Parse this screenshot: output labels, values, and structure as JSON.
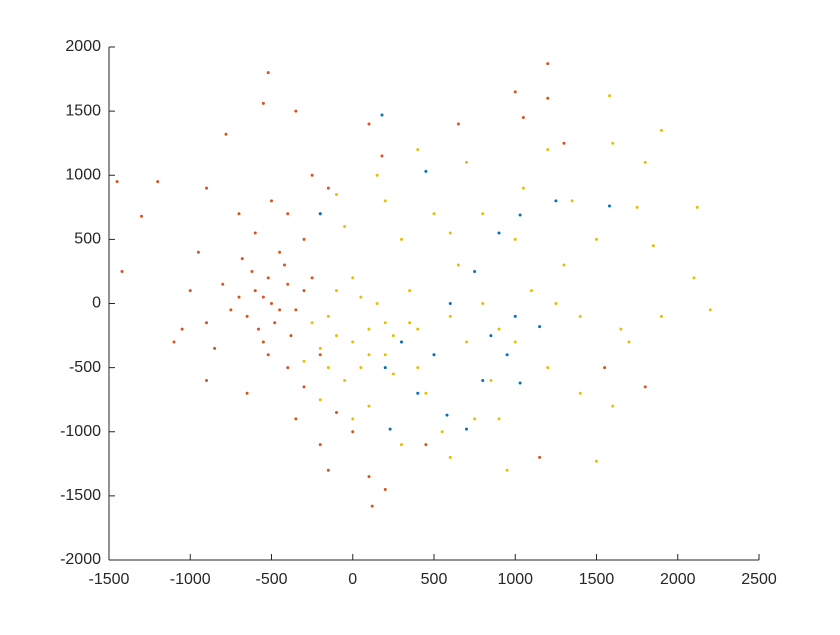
{
  "chart_data": {
    "type": "scatter",
    "xlim": [
      -1500,
      2500
    ],
    "xticks": [
      -1500,
      -1000,
      -500,
      0,
      500,
      1000,
      1500,
      2000,
      2500
    ],
    "ylim": [
      -2000,
      2000
    ],
    "yticks": [
      -2000,
      -1500,
      -1000,
      -500,
      0,
      500,
      1000,
      1500,
      2000
    ],
    "series": [
      {
        "color": "#e6c000",
        "x": [
          0,
          100,
          -100,
          200,
          50,
          -150,
          300,
          150,
          -50,
          400,
          250,
          -200,
          500,
          350,
          0,
          600,
          700,
          450,
          100,
          -100,
          800,
          650,
          900,
          300,
          -50,
          200,
          500,
          1000,
          1100,
          1200,
          850,
          750,
          550,
          300,
          0,
          -200,
          1300,
          1400,
          1500,
          1350,
          1600,
          1800,
          1900,
          1580,
          1400,
          1650,
          1850,
          2100,
          2200,
          2120,
          1750,
          1050,
          700,
          400,
          150,
          -100,
          950,
          1500,
          1200,
          800,
          600,
          400,
          200,
          -250,
          -300,
          100,
          250,
          50,
          350,
          -150,
          1000,
          1250,
          900,
          600,
          1700,
          1600,
          1900
        ],
        "values": [
          -300,
          -200,
          -250,
          -400,
          -500,
          -100,
          -300,
          0,
          -600,
          -200,
          -550,
          -350,
          -400,
          100,
          200,
          -100,
          -300,
          -700,
          -800,
          100,
          0,
          300,
          -200,
          500,
          600,
          800,
          700,
          -300,
          100,
          -500,
          -600,
          -900,
          -1000,
          -1100,
          -900,
          -750,
          300,
          -100,
          500,
          800,
          1250,
          1100,
          1350,
          1620,
          -700,
          -200,
          450,
          200,
          -50,
          750,
          750,
          900,
          1100,
          1200,
          1000,
          850,
          -1300,
          -1230,
          1200,
          700,
          550,
          -500,
          -150,
          -150,
          -450,
          -400,
          -250,
          50,
          -150,
          -500,
          500,
          0,
          -900,
          -1200,
          -300,
          -800,
          -100
        ]
      },
      {
        "color": "#d95319",
        "x": [
          -500,
          -550,
          -450,
          -600,
          -400,
          -650,
          -520,
          -480,
          -700,
          -350,
          -580,
          -420,
          -750,
          -300,
          -620,
          -550,
          -800,
          -450,
          -900,
          -380,
          -680,
          -520,
          -1000,
          -300,
          -850,
          -600,
          -400,
          -1100,
          -200,
          -700,
          -500,
          -250,
          -350,
          -520,
          -780,
          -1200,
          -1450,
          -1420,
          -1300,
          -950,
          -1050,
          -900,
          -650,
          -350,
          -200,
          -150,
          0,
          100,
          200,
          120,
          -300,
          -200,
          -250,
          -150,
          100,
          180,
          450,
          1000,
          1050,
          1200,
          1200,
          1300,
          1150,
          1550,
          1800,
          650,
          -100,
          -550,
          -900,
          -400
        ],
        "values": [
          0,
          50,
          -50,
          100,
          150,
          -100,
          200,
          -150,
          50,
          -50,
          -200,
          300,
          -50,
          100,
          250,
          -300,
          150,
          400,
          -150,
          -250,
          350,
          -400,
          100,
          500,
          -350,
          550,
          -500,
          -300,
          700,
          700,
          800,
          1000,
          1500,
          1800,
          1320,
          950,
          950,
          250,
          680,
          400,
          -200,
          -600,
          -700,
          -900,
          -1100,
          -1300,
          -1000,
          -1350,
          -1450,
          -1580,
          -650,
          -400,
          200,
          900,
          1400,
          1150,
          -1100,
          1650,
          1450,
          1600,
          1870,
          1250,
          -1200,
          -500,
          -650,
          1400,
          -850,
          1560,
          900,
          700
        ]
      },
      {
        "color": "#0072bd",
        "x": [
          180,
          450,
          1580,
          1030,
          1150,
          1030,
          700,
          230,
          580,
          800,
          950,
          500,
          750,
          900,
          600,
          300,
          1000,
          400,
          200,
          850,
          1250,
          -200
        ],
        "values": [
          1470,
          1030,
          760,
          690,
          -180,
          -620,
          -980,
          -980,
          -870,
          -600,
          -400,
          -400,
          250,
          550,
          0,
          -300,
          -100,
          -700,
          -500,
          -250,
          800,
          700
        ]
      }
    ]
  }
}
